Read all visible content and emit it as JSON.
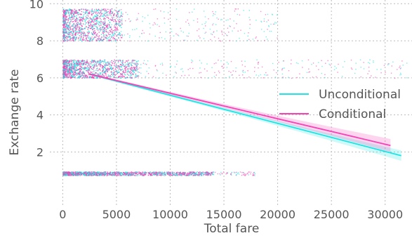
{
  "chart_data": {
    "type": "scatter",
    "title": "",
    "xlabel": "Total fare",
    "ylabel": "Exchange rate",
    "xlim": [
      -1200,
      32500
    ],
    "ylim": [
      -0.9,
      10.2
    ],
    "xticks": [
      0,
      5000,
      10000,
      15000,
      20000,
      25000,
      30000
    ],
    "xtick_labels": [
      "0",
      "5000",
      "10000",
      "15000",
      "20000",
      "25000",
      "30000"
    ],
    "yticks": [
      2,
      4,
      6,
      8,
      10
    ],
    "ytick_labels": [
      "2",
      "4",
      "6",
      "8",
      "10"
    ],
    "grid": true,
    "legend_position": "right",
    "colors": {
      "unconditional": "#22e3e3",
      "conditional": "#f542b5"
    },
    "series": [
      {
        "name": "Unconditional",
        "kind": "regression",
        "x": [
          2500,
          31500
        ],
        "y": [
          6.2,
          1.8
        ],
        "ci_start": 0.05,
        "ci_end": 0.28
      },
      {
        "name": "Conditional",
        "kind": "regression",
        "x": [
          2500,
          30500
        ],
        "y": [
          6.2,
          2.35
        ],
        "ci_start": 0.05,
        "ci_end": 0.35
      }
    ],
    "scatter_bands": [
      {
        "y_range": [
          8.0,
          9.75
        ],
        "x_max": 20000,
        "dense_x_max": 5500
      },
      {
        "y_range": [
          6.0,
          7.0
        ],
        "x_max": 32000,
        "dense_x_max": 7000
      },
      {
        "y_range": [
          0.75,
          0.95
        ],
        "x_max": 18000,
        "dense_x_max": 14000
      }
    ]
  }
}
